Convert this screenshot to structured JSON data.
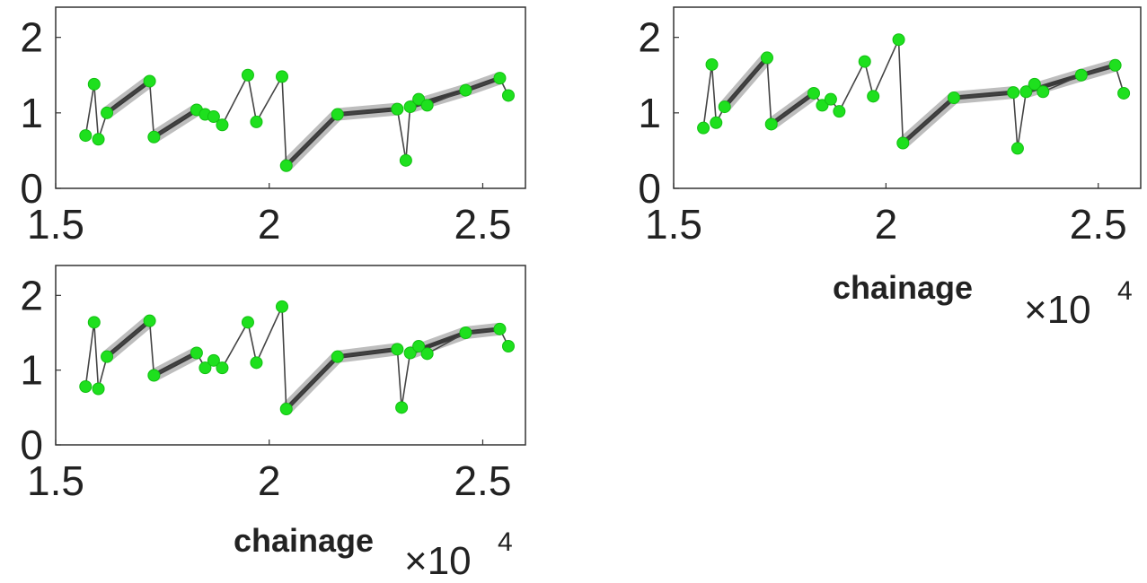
{
  "chart_data": [
    {
      "type": "line",
      "id": "top-left",
      "xlim": [
        1.5,
        2.6
      ],
      "ylim": [
        0,
        2.4
      ],
      "x_ticks": [
        "1.5",
        "2",
        "2.5"
      ],
      "y_ticks": [
        "0",
        "1",
        "2"
      ],
      "xlabel": "",
      "x_multiplier": "",
      "x_multiplier_exp": "",
      "x": [
        1.57,
        1.59,
        1.6,
        1.62,
        1.72,
        1.73,
        1.83,
        1.85,
        1.87,
        1.89,
        1.95,
        1.97,
        2.03,
        2.04,
        2.16,
        2.3,
        2.32,
        2.33,
        2.35,
        2.37,
        2.46,
        2.54,
        2.56
      ],
      "values": [
        0.7,
        1.38,
        0.65,
        1.0,
        1.42,
        0.68,
        1.04,
        0.98,
        0.95,
        0.84,
        1.5,
        0.88,
        1.48,
        0.3,
        0.98,
        1.05,
        0.37,
        1.08,
        1.18,
        1.1,
        1.3,
        1.46,
        1.23
      ],
      "band_segments": [
        [
          1.62,
          1.72
        ],
        [
          1.73,
          1.83
        ],
        [
          2.04,
          2.16
        ],
        [
          2.16,
          2.3
        ],
        [
          2.33,
          2.46
        ],
        [
          2.46,
          2.54
        ]
      ]
    },
    {
      "type": "line",
      "id": "top-right",
      "xlim": [
        1.5,
        2.6
      ],
      "ylim": [
        0,
        2.4
      ],
      "x_ticks": [
        "1.5",
        "2",
        "2.5"
      ],
      "y_ticks": [
        "0",
        "1",
        "2"
      ],
      "xlabel": "chainage",
      "x_multiplier": "×10",
      "x_multiplier_exp": "4",
      "x": [
        1.57,
        1.59,
        1.6,
        1.62,
        1.72,
        1.73,
        1.83,
        1.85,
        1.87,
        1.89,
        1.95,
        1.97,
        2.03,
        2.04,
        2.16,
        2.3,
        2.31,
        2.33,
        2.35,
        2.37,
        2.46,
        2.54,
        2.56
      ],
      "values": [
        0.8,
        1.64,
        0.87,
        1.08,
        1.73,
        0.85,
        1.26,
        1.1,
        1.18,
        1.02,
        1.68,
        1.22,
        1.97,
        0.6,
        1.2,
        1.27,
        0.53,
        1.28,
        1.38,
        1.28,
        1.5,
        1.63,
        1.26
      ],
      "band_segments": [
        [
          1.62,
          1.72
        ],
        [
          1.73,
          1.83
        ],
        [
          2.04,
          2.16
        ],
        [
          2.16,
          2.3
        ],
        [
          2.33,
          2.46
        ],
        [
          2.46,
          2.54
        ]
      ]
    },
    {
      "type": "line",
      "id": "bottom-left",
      "xlim": [
        1.5,
        2.6
      ],
      "ylim": [
        0,
        2.4
      ],
      "x_ticks": [
        "1.5",
        "2",
        "2.5"
      ],
      "y_ticks": [
        "0",
        "1",
        "2"
      ],
      "xlabel": "chainage",
      "x_multiplier": "×10",
      "x_multiplier_exp": "4",
      "x": [
        1.57,
        1.59,
        1.6,
        1.62,
        1.72,
        1.73,
        1.83,
        1.85,
        1.87,
        1.89,
        1.95,
        1.97,
        2.03,
        2.04,
        2.16,
        2.3,
        2.31,
        2.33,
        2.35,
        2.37,
        2.46,
        2.54,
        2.56
      ],
      "values": [
        0.78,
        1.64,
        0.75,
        1.18,
        1.66,
        0.93,
        1.23,
        1.03,
        1.13,
        1.03,
        1.64,
        1.1,
        1.85,
        0.48,
        1.18,
        1.28,
        0.5,
        1.23,
        1.32,
        1.22,
        1.5,
        1.55,
        1.32
      ],
      "band_segments": [
        [
          1.62,
          1.72
        ],
        [
          1.73,
          1.83
        ],
        [
          2.04,
          2.16
        ],
        [
          2.16,
          2.3
        ],
        [
          2.33,
          2.46
        ],
        [
          2.46,
          2.54
        ]
      ]
    }
  ]
}
